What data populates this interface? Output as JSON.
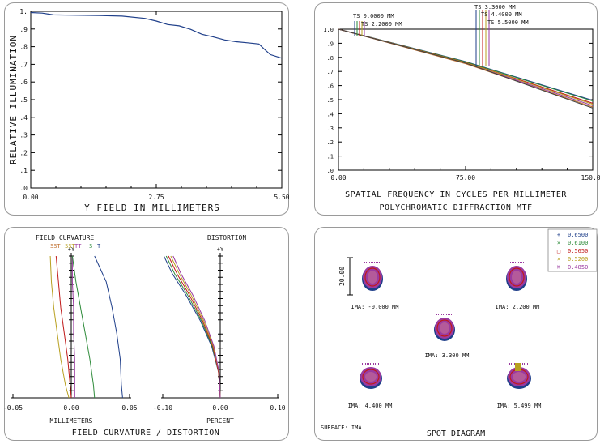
{
  "chart_data": [
    {
      "type": "line",
      "ylabel": "RELATIVE ILLUMINATION",
      "xlabel": "Y FIELD IN MILLIMETERS",
      "x_ticks": [
        "0.00",
        "2.75",
        "5.50"
      ],
      "y_ticks": [
        ".0",
        ".1",
        ".2",
        ".3",
        ".4",
        ".5",
        ".6",
        ".7",
        ".8",
        ".9",
        "1."
      ],
      "xlim": [
        0,
        5.5
      ],
      "ylim": [
        0,
        1.0
      ],
      "series": [
        {
          "color": "#1f3f8a",
          "x": [
            0,
            0.25,
            0.5,
            1.0,
            1.5,
            2.0,
            2.5,
            2.75,
            3.0,
            3.25,
            3.5,
            3.75,
            4.0,
            4.25,
            4.5,
            4.75,
            5.0,
            5.1,
            5.25,
            5.5
          ],
          "y": [
            0.993,
            0.99,
            0.98,
            0.978,
            0.976,
            0.973,
            0.96,
            0.945,
            0.925,
            0.918,
            0.898,
            0.87,
            0.855,
            0.838,
            0.828,
            0.822,
            0.815,
            0.79,
            0.755,
            0.735
          ]
        }
      ]
    },
    {
      "type": "line",
      "title": "POLYCHROMATIC DIFFRACTION MTF",
      "xlabel": "SPATIAL FREQUENCY IN CYCLES PER MILLIMETER",
      "x_ticks": [
        "0.00",
        "75.00",
        "150.00"
      ],
      "y_ticks": [
        ".0",
        ".1",
        ".2",
        ".3",
        ".4",
        ".5",
        ".6",
        ".7",
        ".8",
        ".9",
        "1.0"
      ],
      "xlim": [
        0,
        150
      ],
      "ylim": [
        0,
        1.0
      ],
      "legend": [
        "TS 0.0000 MM",
        "TS 2.2000 MM",
        "TS 3.3000 MM",
        "TS 4.4000 MM",
        "TS 5.5000 MM"
      ],
      "legend_colors": [
        "#1f3f8a",
        "#2e8b3a",
        "#c01a1a",
        "#b8a020",
        "#9a3aa0"
      ],
      "series": [
        {
          "color": "#1f3f8a",
          "x": [
            0,
            75,
            150
          ],
          "y": [
            1.0,
            0.77,
            0.495
          ]
        },
        {
          "color": "#2e8b3a",
          "x": [
            0,
            75,
            150
          ],
          "y": [
            1.0,
            0.768,
            0.49
          ]
        },
        {
          "color": "#c01a1a",
          "x": [
            0,
            75,
            150
          ],
          "y": [
            1.0,
            0.764,
            0.475
          ]
        },
        {
          "color": "#b8a020",
          "x": [
            0,
            75,
            150
          ],
          "y": [
            1.0,
            0.762,
            0.468
          ]
        },
        {
          "color": "#9a3aa0",
          "x": [
            0,
            75,
            150
          ],
          "y": [
            1.0,
            0.758,
            0.458
          ]
        },
        {
          "color": "#c07030",
          "x": [
            0,
            75,
            150
          ],
          "y": [
            1.0,
            0.755,
            0.448
          ]
        },
        {
          "color": "#404040",
          "x": [
            0,
            75,
            150
          ],
          "y": [
            1.0,
            0.76,
            0.44
          ]
        }
      ]
    },
    {
      "type": "line",
      "title": "FIELD CURVATURE",
      "xlabel": "MILLIMETERS",
      "x_ticks": [
        "-0.05",
        "0.00",
        "0.05"
      ],
      "xlim": [
        -0.05,
        0.05
      ],
      "ylim": [
        0,
        5.5
      ],
      "axis_label": "+Y",
      "legend_labels": [
        "SST",
        "SST",
        "TT",
        "S",
        "T"
      ],
      "series": [
        {
          "color": "#b8a020",
          "x": [
            -0.018,
            -0.017,
            -0.015,
            -0.012,
            -0.009,
            -0.005,
            -0.002
          ],
          "y": [
            5.5,
            4.5,
            3.5,
            2.5,
            1.5,
            0.5,
            0
          ]
        },
        {
          "color": "#c01a1a",
          "x": [
            -0.013,
            -0.011,
            -0.009,
            -0.006,
            -0.003,
            -0.001,
            0.0
          ],
          "y": [
            5.5,
            4.5,
            3.5,
            2.5,
            1.5,
            0.5,
            0
          ]
        },
        {
          "color": "#9a3aa0",
          "x": [
            0.001,
            0.001,
            0.002,
            0.002,
            0.003,
            0.003,
            0.003
          ],
          "y": [
            5.5,
            4.5,
            3.5,
            2.5,
            1.5,
            0.5,
            0
          ]
        },
        {
          "color": "#2e8b3a",
          "x": [
            0.001,
            0.004,
            0.008,
            0.012,
            0.016,
            0.019,
            0.02
          ],
          "y": [
            5.5,
            4.5,
            3.5,
            2.5,
            1.5,
            0.5,
            0
          ]
        },
        {
          "color": "#1f3f8a",
          "x": [
            0.02,
            0.03,
            0.035,
            0.039,
            0.042,
            0.043,
            0.044
          ],
          "y": [
            5.5,
            4.5,
            3.5,
            2.5,
            1.5,
            0.5,
            0
          ]
        }
      ]
    },
    {
      "type": "line",
      "title": "DISTORTION",
      "xlabel": "PERCENT",
      "x_ticks": [
        "-0.10",
        "0.00",
        "0.10"
      ],
      "xlim": [
        -0.1,
        0.1
      ],
      "ylim": [
        0,
        5.5
      ],
      "axis_label": "+Y",
      "series": [
        {
          "color": "#1f3f8a",
          "x": [
            -0.098,
            -0.083,
            -0.06,
            -0.035,
            -0.015,
            -0.003,
            0
          ],
          "y": [
            5.5,
            4.8,
            4.0,
            3.0,
            2.0,
            1.0,
            0
          ]
        },
        {
          "color": "#2e8b3a",
          "x": [
            -0.094,
            -0.079,
            -0.057,
            -0.033,
            -0.014,
            -0.003,
            0
          ],
          "y": [
            5.5,
            4.8,
            4.0,
            3.0,
            2.0,
            1.0,
            0
          ]
        },
        {
          "color": "#c01a1a",
          "x": [
            -0.09,
            -0.075,
            -0.054,
            -0.031,
            -0.013,
            -0.003,
            0
          ],
          "y": [
            5.5,
            4.8,
            4.0,
            3.0,
            2.0,
            1.0,
            0
          ]
        },
        {
          "color": "#b8a020",
          "x": [
            -0.086,
            -0.071,
            -0.051,
            -0.029,
            -0.012,
            -0.002,
            0
          ],
          "y": [
            5.5,
            4.8,
            4.0,
            3.0,
            2.0,
            1.0,
            0
          ]
        },
        {
          "color": "#9a3aa0",
          "x": [
            -0.082,
            -0.068,
            -0.048,
            -0.027,
            -0.011,
            -0.002,
            0
          ],
          "y": [
            5.5,
            4.8,
            4.0,
            3.0,
            2.0,
            1.0,
            0
          ]
        }
      ]
    }
  ],
  "fc_bottom_title": "FIELD CURVATURE / DISTORTION",
  "spot": {
    "title": "SPOT DIAGRAM",
    "surface": "SURFACE: IMA",
    "scale_label": "20.00",
    "legend": [
      {
        "symbol": "+",
        "value": "0.6500",
        "color": "#1f3f8a"
      },
      {
        "symbol": "×",
        "value": "0.6100",
        "color": "#2e8b3a"
      },
      {
        "symbol": "□",
        "value": "0.5650",
        "color": "#c01a1a"
      },
      {
        "symbol": "×",
        "value": "0.5200",
        "color": "#b8a020"
      },
      {
        "symbol": "⌘",
        "value": "0.4850",
        "color": "#9a3aa0"
      }
    ],
    "fields": [
      {
        "label": "IMA: -0.000 MM"
      },
      {
        "label": "IMA: 2.200 MM"
      },
      {
        "label": "IMA: 3.300 MM"
      },
      {
        "label": "IMA: 4.400 MM"
      },
      {
        "label": "IMA: 5.499 MM"
      }
    ]
  }
}
